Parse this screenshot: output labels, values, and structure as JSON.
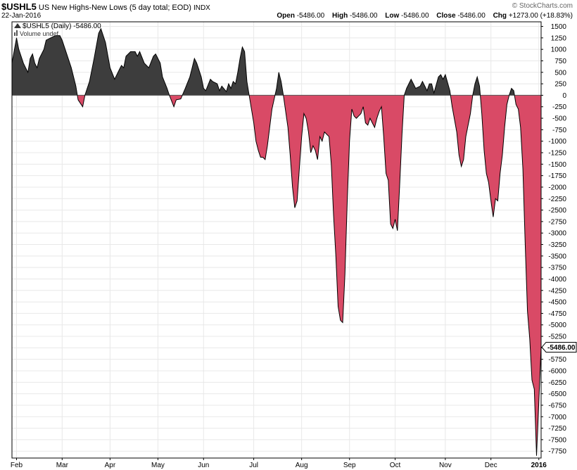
{
  "header": {
    "symbol": "$USHL5",
    "description": "US New Highs-New Lows (5 day total; EOD)",
    "exchange": "INDX",
    "brand": "© StockCharts.com",
    "date": "22-Jan-2016",
    "open_label": "Open",
    "open_value": "-5486.00",
    "high_label": "High",
    "high_value": "-5486.00",
    "low_label": "Low",
    "low_value": "-5486.00",
    "close_label": "Close",
    "close_value": "-5486.00",
    "chg_label": "Chg",
    "chg_value": "+1273.00 (+18.83%)"
  },
  "legend": {
    "series_line": "$USHL5 (Daily) -5486.00",
    "volume_line": "Volume undef"
  },
  "colors": {
    "positive_fill": "#3d3d3d",
    "negative_fill": "#d94a66",
    "line": "#000000",
    "grid": "#e8e8e8",
    "zero_line": "#555555"
  },
  "chart_data": {
    "type": "area",
    "title": "$USHL5 US New Highs-New Lows (5 day total; EOD)",
    "xlabel": "",
    "ylabel": "",
    "ylim": [
      -7900,
      1600
    ],
    "grid": true,
    "last_value_label": "-5486.00",
    "y_ticks": [
      1500,
      1250,
      1000,
      750,
      500,
      250,
      0,
      -250,
      -500,
      -750,
      -1000,
      -1250,
      -1500,
      -1750,
      -2000,
      -2250,
      -2500,
      -2750,
      -3000,
      -3250,
      -3500,
      -3750,
      -4000,
      -4250,
      -4500,
      -4750,
      -5000,
      -5250,
      -5500,
      -5750,
      -6000,
      -6250,
      -6500,
      -6750,
      -7000,
      -7250,
      -7500,
      -7750
    ],
    "x_ticks": [
      {
        "label": "Feb",
        "t": 2
      },
      {
        "label": "Mar",
        "t": 22
      },
      {
        "label": "Apr",
        "t": 43
      },
      {
        "label": "May",
        "t": 64
      },
      {
        "label": "Jun",
        "t": 84
      },
      {
        "label": "Jul",
        "t": 106
      },
      {
        "label": "Aug",
        "t": 127
      },
      {
        "label": "Sep",
        "t": 148
      },
      {
        "label": "Oct",
        "t": 168
      },
      {
        "label": "Nov",
        "t": 190
      },
      {
        "label": "Dec",
        "t": 210
      },
      {
        "label": "2016",
        "t": 231,
        "bold": true
      }
    ],
    "series": [
      {
        "name": "$USHL5",
        "points": [
          [
            0,
            700
          ],
          [
            2,
            1250
          ],
          [
            3,
            1000
          ],
          [
            5,
            700
          ],
          [
            6,
            600
          ],
          [
            7,
            500
          ],
          [
            8,
            800
          ],
          [
            9,
            900
          ],
          [
            10,
            700
          ],
          [
            11,
            600
          ],
          [
            12,
            800
          ],
          [
            14,
            1000
          ],
          [
            15,
            1200
          ],
          [
            17,
            1250
          ],
          [
            19,
            1300
          ],
          [
            21,
            1300
          ],
          [
            22,
            1200
          ],
          [
            24,
            900
          ],
          [
            26,
            600
          ],
          [
            28,
            200
          ],
          [
            29,
            -100
          ],
          [
            31,
            -250
          ],
          [
            32,
            0
          ],
          [
            34,
            300
          ],
          [
            36,
            800
          ],
          [
            38,
            1350
          ],
          [
            39,
            1450
          ],
          [
            41,
            1150
          ],
          [
            43,
            600
          ],
          [
            45,
            350
          ],
          [
            47,
            550
          ],
          [
            48,
            650
          ],
          [
            49,
            600
          ],
          [
            50,
            850
          ],
          [
            52,
            950
          ],
          [
            54,
            950
          ],
          [
            55,
            850
          ],
          [
            56,
            950
          ],
          [
            58,
            700
          ],
          [
            60,
            600
          ],
          [
            62,
            850
          ],
          [
            63,
            900
          ],
          [
            65,
            700
          ],
          [
            66,
            400
          ],
          [
            68,
            150
          ],
          [
            69,
            0
          ],
          [
            71,
            -250
          ],
          [
            72,
            -100
          ],
          [
            74,
            -80
          ],
          [
            76,
            150
          ],
          [
            78,
            400
          ],
          [
            79,
            600
          ],
          [
            80,
            800
          ],
          [
            81,
            700
          ],
          [
            83,
            400
          ],
          [
            84,
            150
          ],
          [
            85,
            100
          ],
          [
            87,
            350
          ],
          [
            88,
            300
          ],
          [
            90,
            250
          ],
          [
            91,
            100
          ],
          [
            92,
            200
          ],
          [
            94,
            80
          ],
          [
            95,
            250
          ],
          [
            96,
            150
          ],
          [
            97,
            300
          ],
          [
            98,
            250
          ],
          [
            99,
            500
          ],
          [
            100,
            800
          ],
          [
            101,
            1050
          ],
          [
            102,
            950
          ],
          [
            103,
            300
          ],
          [
            104,
            0
          ],
          [
            106,
            -600
          ],
          [
            107,
            -1000
          ],
          [
            108,
            -1200
          ],
          [
            109,
            -1350
          ],
          [
            110,
            -1350
          ],
          [
            111,
            -1400
          ],
          [
            112,
            -1100
          ],
          [
            114,
            -300
          ],
          [
            116,
            150
          ],
          [
            117,
            500
          ],
          [
            118,
            300
          ],
          [
            119,
            0
          ],
          [
            121,
            -700
          ],
          [
            122,
            -1300
          ],
          [
            123,
            -2000
          ],
          [
            124,
            -2450
          ],
          [
            125,
            -2300
          ],
          [
            126,
            -1600
          ],
          [
            127,
            -900
          ],
          [
            128,
            -400
          ],
          [
            129,
            -500
          ],
          [
            130,
            -800
          ],
          [
            131,
            -1250
          ],
          [
            132,
            -1100
          ],
          [
            133,
            -1200
          ],
          [
            134,
            -1400
          ],
          [
            135,
            -900
          ],
          [
            136,
            -1000
          ],
          [
            137,
            -800
          ],
          [
            138,
            -850
          ],
          [
            139,
            -900
          ],
          [
            140,
            -1500
          ],
          [
            141,
            -2600
          ],
          [
            142,
            -3500
          ],
          [
            143,
            -4600
          ],
          [
            144,
            -4900
          ],
          [
            145,
            -4950
          ],
          [
            146,
            -3900
          ],
          [
            147,
            -2300
          ],
          [
            148,
            -1000
          ],
          [
            149,
            -300
          ],
          [
            150,
            -450
          ],
          [
            151,
            -500
          ],
          [
            152,
            -450
          ],
          [
            153,
            -400
          ],
          [
            154,
            -250
          ],
          [
            155,
            -600
          ],
          [
            156,
            -650
          ],
          [
            157,
            -500
          ],
          [
            158,
            -600
          ],
          [
            159,
            -700
          ],
          [
            160,
            -500
          ],
          [
            161,
            -350
          ],
          [
            162,
            -250
          ],
          [
            163,
            -900
          ],
          [
            164,
            -1700
          ],
          [
            165,
            -1850
          ],
          [
            166,
            -2800
          ],
          [
            167,
            -2900
          ],
          [
            168,
            -2700
          ],
          [
            169,
            -2950
          ],
          [
            170,
            -1950
          ],
          [
            171,
            -850
          ],
          [
            172,
            0
          ],
          [
            173,
            150
          ],
          [
            175,
            350
          ],
          [
            176,
            250
          ],
          [
            177,
            150
          ],
          [
            179,
            200
          ],
          [
            180,
            300
          ],
          [
            181,
            200
          ],
          [
            182,
            100
          ],
          [
            183,
            250
          ],
          [
            184,
            250
          ],
          [
            185,
            50
          ],
          [
            187,
            400
          ],
          [
            188,
            450
          ],
          [
            189,
            350
          ],
          [
            190,
            450
          ],
          [
            192,
            100
          ],
          [
            193,
            -250
          ],
          [
            195,
            -800
          ],
          [
            196,
            -1300
          ],
          [
            197,
            -1550
          ],
          [
            198,
            -1400
          ],
          [
            199,
            -900
          ],
          [
            201,
            -400
          ],
          [
            202,
            0
          ],
          [
            203,
            250
          ],
          [
            204,
            400
          ],
          [
            205,
            200
          ],
          [
            206,
            -400
          ],
          [
            207,
            -1200
          ],
          [
            208,
            -1700
          ],
          [
            209,
            -1900
          ],
          [
            210,
            -2300
          ],
          [
            211,
            -2650
          ],
          [
            212,
            -2250
          ],
          [
            213,
            -2300
          ],
          [
            214,
            -1700
          ],
          [
            215,
            -1300
          ],
          [
            216,
            -700
          ],
          [
            217,
            -200
          ],
          [
            218,
            0
          ],
          [
            219,
            150
          ],
          [
            220,
            100
          ],
          [
            221,
            -200
          ],
          [
            222,
            -300
          ],
          [
            223,
            -700
          ],
          [
            224,
            -1600
          ],
          [
            225,
            -3200
          ],
          [
            226,
            -4700
          ],
          [
            227,
            -5300
          ],
          [
            228,
            -6200
          ],
          [
            229,
            -6400
          ],
          [
            230,
            -7850
          ],
          [
            232,
            -5486
          ]
        ]
      }
    ]
  }
}
